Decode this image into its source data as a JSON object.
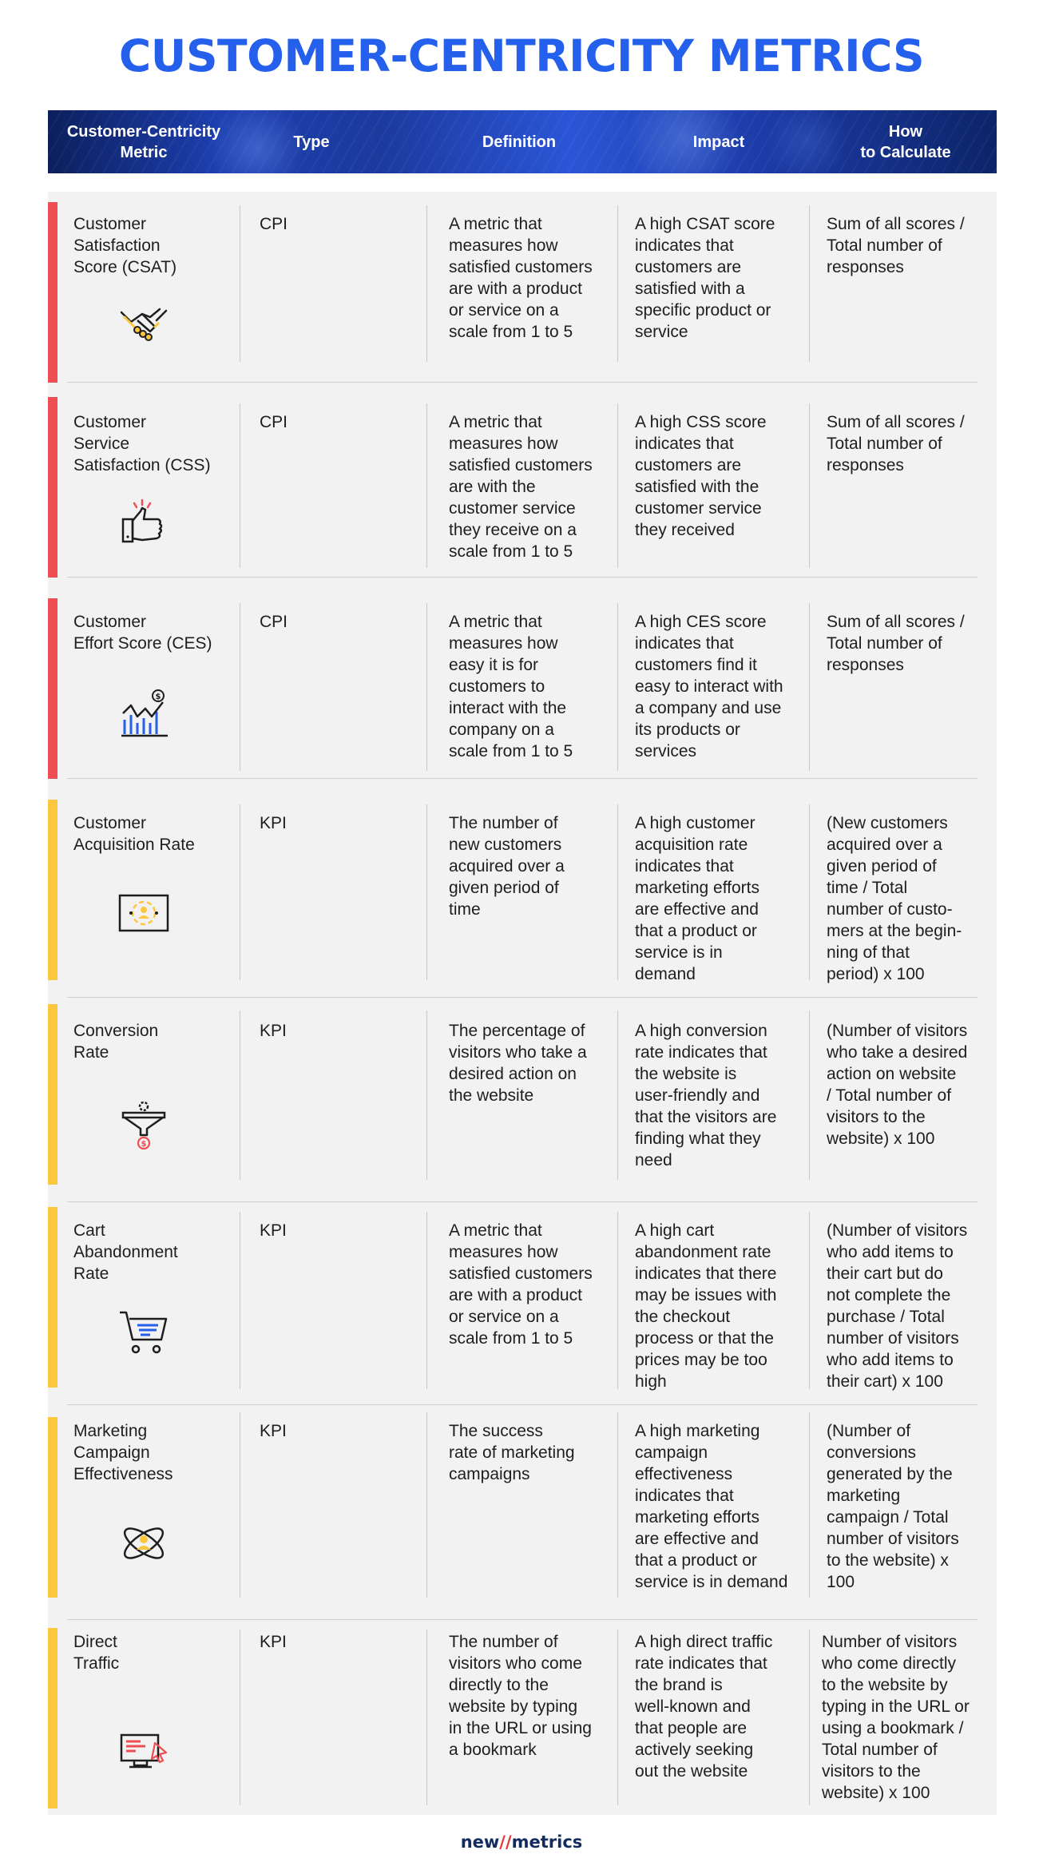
{
  "title": "CUSTOMER-CENTRICITY METRICS",
  "header": {
    "columns": [
      "Customer-Centricity\nMetric",
      "Type",
      "Definition",
      "Impact",
      "How\nto Calculate"
    ]
  },
  "colors": {
    "title": "#2460ec",
    "cpi_accent": "#ef4e55",
    "kpi_accent": "#fbc73e",
    "table_bg": "#f2f2f2",
    "header_bg": "#1d3fb0"
  },
  "rows": [
    {
      "name": "Customer\nSatisfaction\nScore (CSAT)",
      "type": "CPI",
      "definition": "A metric that\nmeasures how\nsatisfied customers\nare with a product\nor service on a\nscale from 1 to 5",
      "impact": "A high CSAT score\nindicates that\ncustomers are\nsatisfied with a\nspecific product or\nservice",
      "calculation": "Sum of all scores /\nTotal number of\nresponses",
      "icon": "handshake-icon"
    },
    {
      "name": "Customer\nService\nSatisfaction (CSS)",
      "type": "CPI",
      "definition": "A metric that\nmeasures how\nsatisfied customers\nare with the\ncustomer service\nthey receive on a\nscale from 1 to 5",
      "impact": "A high CSS score\nindicates that\ncustomers are\nsatisfied with the\ncustomer service\nthey received",
      "calculation": "Sum of all scores /\nTotal number of\nresponses",
      "icon": "thumbs-up-icon"
    },
    {
      "name": "Customer\nEffort Score (CES)",
      "type": "CPI",
      "definition": "A metric that\nmeasures how\neasy it is for\ncustomers to\ninteract with the\ncompany on a\nscale from 1 to 5",
      "impact": "A high CES score\nindicates that\ncustomers find it\neasy to interact with\na company and use\nits products or\nservices",
      "calculation": "Sum of all scores /\nTotal number of\nresponses",
      "icon": "bar-chart-dollar-icon"
    },
    {
      "name": "Customer\nAcquisition Rate",
      "type": "KPI",
      "definition": "The number of\nnew customers\nacquired over a\ngiven period of\ntime",
      "impact": "A high customer\nacquisition rate\nindicates that\nmarketing efforts\nare effective and\nthat a product or\nservice is in\ndemand",
      "calculation": "(New customers\nacquired over a\ngiven period of\ntime / Total\nnumber of custo-\nmers at the begin-\nning of that\nperiod) x 100",
      "icon": "user-target-icon"
    },
    {
      "name": "Conversion\nRate",
      "type": "KPI",
      "definition": "The percentage of\nvisitors who take a\ndesired action on\nthe website",
      "impact": "A high conversion\nrate indicates that\nthe website is\nuser-friendly and\nthat the visitors are\nfinding what they\nneed",
      "calculation": "(Number of visitors\nwho take a desired\naction on website\n/ Total number of\nvisitors to the\nwebsite) x 100",
      "icon": "funnel-dollar-icon"
    },
    {
      "name": "Cart\nAbandonment\nRate",
      "type": "KPI",
      "definition": "A metric that\nmeasures how\nsatisfied customers\nare with a product\nor service on a\nscale from 1 to 5",
      "impact": "A high cart\nabandonment rate\nindicates that there\nmay be issues with\nthe checkout\nprocess or that the\nprices may be too\nhigh",
      "calculation": "(Number of visitors\nwho add items to\ntheir cart but do\nnot complete the\npurchase / Total\nnumber of visitors\nwho add items to\ntheir cart) x 100",
      "icon": "shopping-cart-icon"
    },
    {
      "name": "Marketing\nCampaign\nEffectiveness",
      "type": "KPI",
      "definition": "The success\nrate of marketing\ncampaigns",
      "impact": "A high marketing\ncampaign\neffectiveness\nindicates that\nmarketing efforts\nare effective and\nthat a product or\nservice is in demand",
      "calculation": "(Number of\nconversions\ngenerated by the\nmarketing\ncampaign / Total\nnumber of visitors\nto the website) x\n100",
      "icon": "atom-user-icon"
    },
    {
      "name": "Direct\nTraffic",
      "type": "KPI",
      "definition": "The number of\nvisitors who come\ndirectly to the\nwebsite by typing\nin the URL or using\na bookmark",
      "impact": "A high direct traffic\nrate indicates that\nthe brand is\nwell-known and\nthat people are\nactively seeking\nout the website",
      "calculation": "Number of visitors\nwho come directly\nto the website by\ntyping in the URL or\nusing a bookmark /\nTotal number of\nvisitors to the\nwebsite) x 100",
      "icon": "monitor-cursor-icon"
    }
  ],
  "footer": {
    "logo_left": "new",
    "logo_slash": "//",
    "logo_right": "metrics"
  }
}
